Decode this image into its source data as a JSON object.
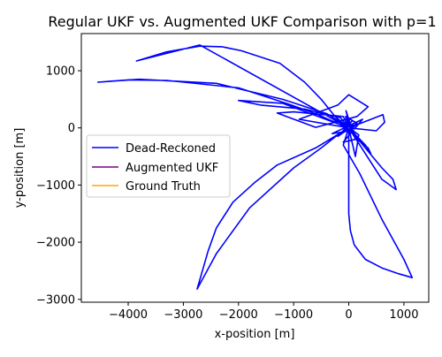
{
  "chart_data": {
    "type": "line",
    "title": "Regular UKF vs. Augmented UKF Comparison with p=1",
    "xlabel": "x-position [m]",
    "ylabel": "y-position [m]",
    "xlim": [
      -4850,
      1450
    ],
    "ylim": [
      -3050,
      1650
    ],
    "xticks": [
      -4000,
      -3000,
      -2000,
      -1000,
      0,
      1000
    ],
    "xtick_labels": [
      "−4000",
      "−3000",
      "−2000",
      "−1000",
      "0",
      "1000"
    ],
    "yticks": [
      -3000,
      -2000,
      -1000,
      0,
      1000
    ],
    "ytick_labels": [
      "−3000",
      "−2000",
      "−1000",
      "0",
      "1000"
    ],
    "grid": false,
    "legend_position": "center-left",
    "series": [
      {
        "name": "Dead-Reckoned",
        "color": "#0000ff",
        "x": [
          0,
          80,
          -120,
          60,
          -200,
          150,
          -60,
          30,
          -300,
          250,
          -100,
          120,
          -50,
          20,
          -400,
          -1200,
          -2400,
          -3800,
          -4550,
          -4000,
          -3300,
          -2000,
          -1100,
          -600,
          -300,
          0,
          100,
          0,
          -2700,
          -3850,
          -3300,
          -2700,
          -2300,
          -1950,
          -1250,
          -800,
          -500,
          -250,
          0,
          -600,
          -1300,
          -1700,
          -2100,
          -2400,
          -2550,
          -2750,
          -2400,
          -1800,
          -1000,
          -500,
          -200,
          0,
          300,
          400,
          350,
          150,
          0,
          600,
          800,
          860,
          600,
          0,
          500,
          650,
          620,
          0,
          0,
          0,
          30,
          100,
          300,
          600,
          900,
          1150,
          1000,
          600,
          200,
          -100,
          0,
          -900,
          -200,
          0,
          350,
          150,
          -600,
          -1300,
          -1000,
          -100,
          0,
          180,
          120,
          0,
          -1200,
          -2000,
          -1600,
          -800,
          -150,
          0
        ],
        "y": [
          0,
          50,
          -80,
          120,
          -150,
          80,
          200,
          -50,
          -100,
          150,
          -250,
          -200,
          300,
          0,
          250,
          500,
          780,
          850,
          800,
          840,
          830,
          700,
          420,
          250,
          120,
          60,
          20,
          0,
          1450,
          1170,
          1330,
          1430,
          1420,
          1350,
          1130,
          800,
          500,
          200,
          0,
          -350,
          -650,
          -950,
          -1300,
          -1750,
          -2150,
          -2820,
          -2200,
          -1400,
          -700,
          -350,
          -120,
          0,
          -300,
          -450,
          -350,
          -200,
          0,
          -700,
          -900,
          -1080,
          -900,
          0,
          -50,
          100,
          230,
          0,
          -200,
          -1500,
          -1800,
          -2050,
          -2300,
          -2450,
          -2550,
          -2620,
          -2300,
          -1600,
          -800,
          -300,
          0,
          150,
          400,
          580,
          370,
          200,
          10,
          260,
          280,
          200,
          0,
          -120,
          -500,
          0,
          430,
          480,
          400,
          330,
          180,
          0
        ]
      },
      {
        "name": "Augmented UKF",
        "color": "#800080",
        "x": [
          0,
          5,
          10
        ],
        "y": [
          0,
          3,
          6
        ]
      },
      {
        "name": "Ground Truth",
        "color": "#ffa500",
        "x": [
          0,
          4,
          8
        ],
        "y": [
          0,
          2,
          4
        ]
      }
    ]
  }
}
